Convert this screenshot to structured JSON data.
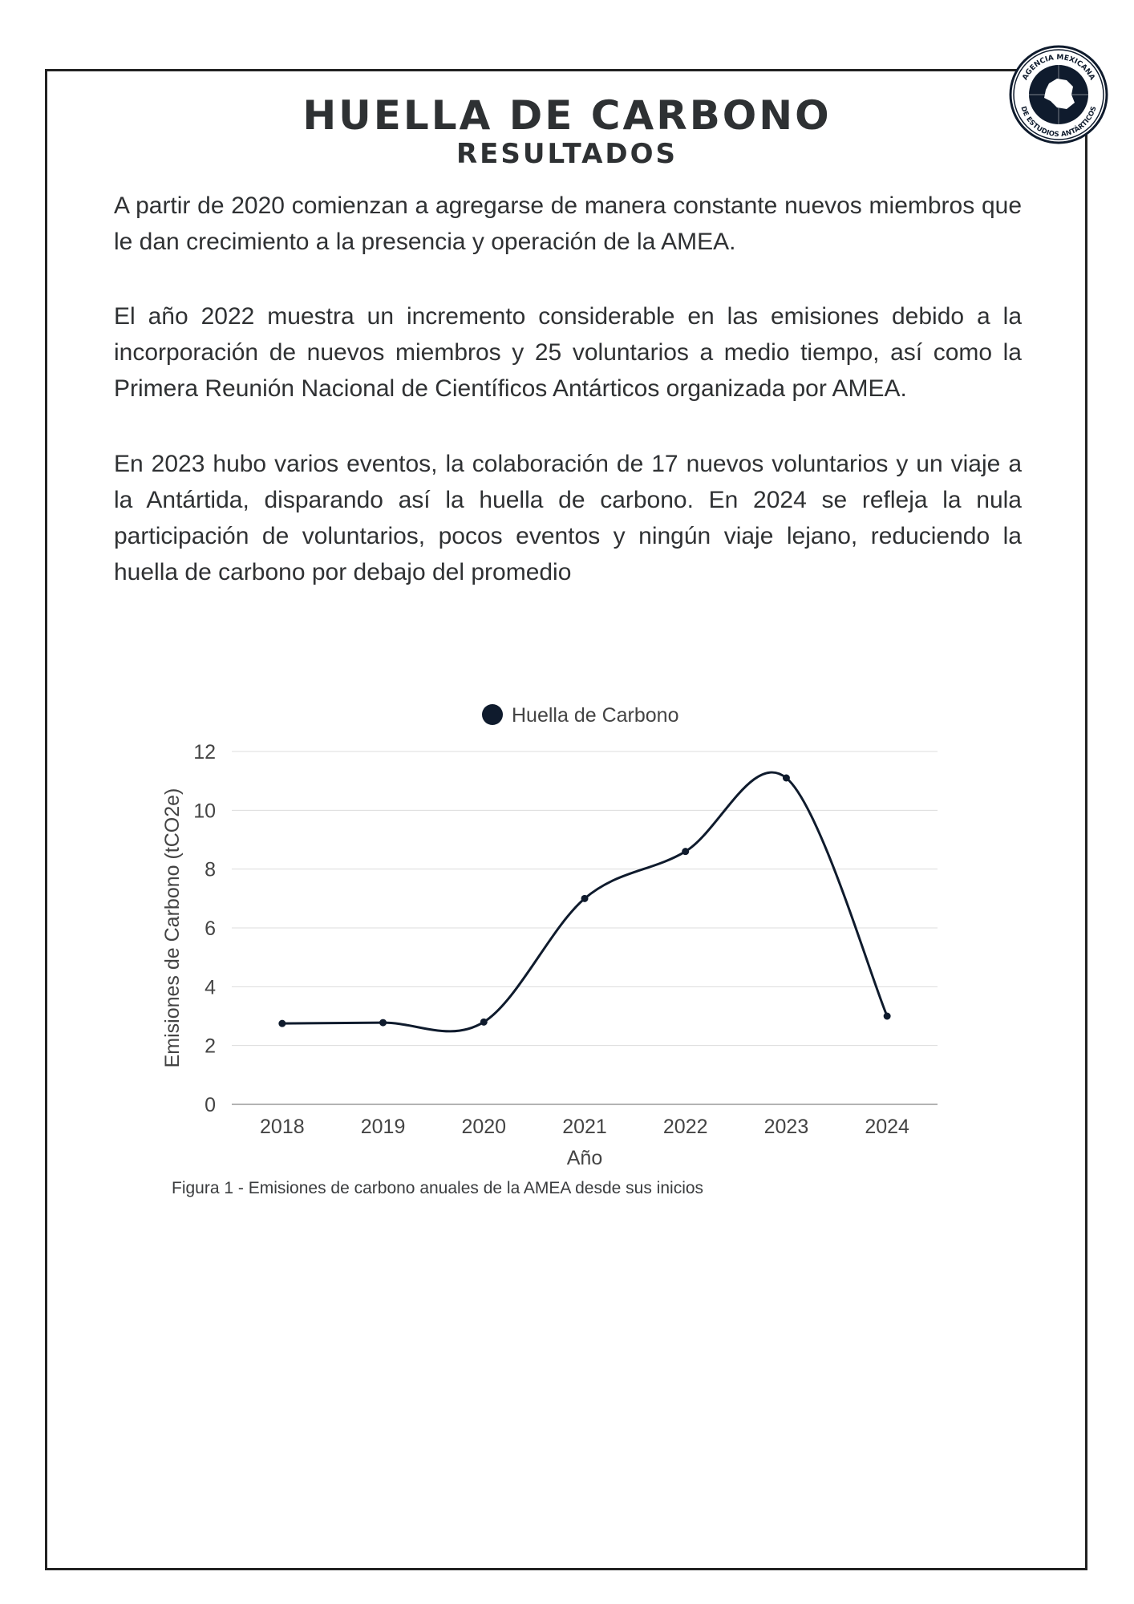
{
  "header": {
    "title": "HUELLA DE CARBONO",
    "subtitle": "RESULTADOS",
    "seal_text_top": "AGENCIA MEXICANA",
    "seal_text_bottom": "DE ESTUDIOS ANTÁRTICOS"
  },
  "paragraphs": [
    "A partir de 2020 comienzan a agregarse de manera constante nuevos miembros que le dan crecimiento a la presencia y operación de la AMEA.",
    "El año 2022 muestra un incremento considerable en las emisiones debido a la incorporación de nuevos miembros y 25 voluntarios a medio tiempo, así como la Primera Reunión Nacional de Científicos Antárticos organizada por AMEA.",
    "En 2023 hubo varios eventos, la colaboración de 17 nuevos voluntarios y un viaje a la Antártida, disparando así la huella de carbono. En 2024 se refleja la nula participación de voluntarios, pocos eventos y ningún viaje lejano, reduciendo la huella de carbono por debajo del promedio"
  ],
  "chart_data": {
    "type": "line",
    "title": "",
    "x": [
      "2018",
      "2019",
      "2020",
      "2021",
      "2022",
      "2023",
      "2024"
    ],
    "series": [
      {
        "name": "Huella de Carbono",
        "values": [
          2.75,
          2.78,
          2.8,
          7.0,
          8.6,
          11.1,
          3.0
        ],
        "color": "#0f1b2d"
      }
    ],
    "xlabel": "Año",
    "ylabel": "Emisiones de Carbono (tCO2e)",
    "ylim": [
      0,
      12
    ],
    "yticks": [
      0,
      2,
      4,
      6,
      8,
      10,
      12
    ],
    "grid": true,
    "legend_position": "top-center",
    "smooth": true
  },
  "caption": "Figura 1 - Emisiones de carbono anuales de la AMEA desde sus inicios"
}
